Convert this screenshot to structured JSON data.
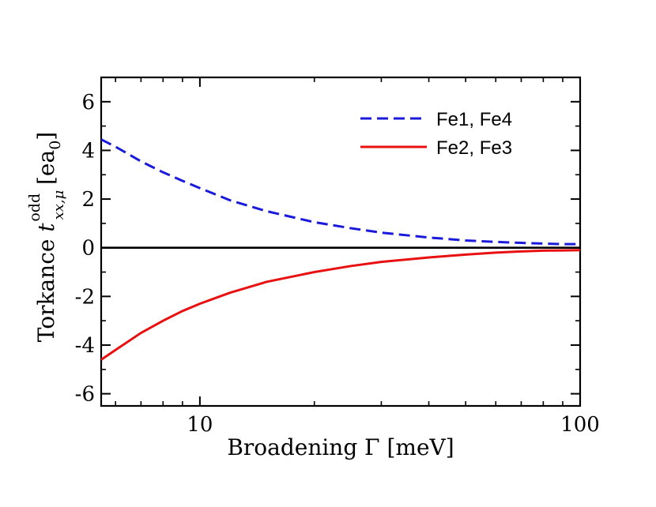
{
  "chart_data": {
    "type": "line",
    "title": "",
    "xlabel": "Broadening Γ [meV]",
    "ylabel": {
      "prefix": "Torkance ",
      "symbol": "t",
      "superscript": "odd",
      "subscript": "xx,μ",
      "unit_open": " [ea",
      "unit_sub": "0",
      "unit_close": "]"
    },
    "x_scale": "log",
    "xlim": [
      5.5,
      100
    ],
    "ylim": [
      -6.5,
      7
    ],
    "x_ticks": [
      10,
      100
    ],
    "x_tick_labels": [
      "10",
      "100"
    ],
    "y_ticks": [
      -6,
      -4,
      -2,
      0,
      2,
      4,
      6
    ],
    "y_tick_labels": [
      "-6",
      "-4",
      "-2",
      "0",
      "2",
      "4",
      "6"
    ],
    "zero_line": 0,
    "legend_position": "top-right",
    "series": [
      {
        "name": "Fe1, Fe4",
        "style": "dashed",
        "color": "#1a1adb",
        "x": [
          5.5,
          6,
          7,
          8,
          9,
          10,
          12,
          15,
          20,
          25,
          30,
          40,
          50,
          60,
          70,
          80,
          90,
          100
        ],
        "y": [
          4.45,
          4.15,
          3.55,
          3.1,
          2.75,
          2.45,
          1.95,
          1.5,
          1.05,
          0.8,
          0.62,
          0.42,
          0.3,
          0.24,
          0.2,
          0.17,
          0.15,
          0.15
        ]
      },
      {
        "name": "Fe2, Fe3",
        "style": "solid",
        "color": "#e81010",
        "x": [
          5.5,
          6,
          7,
          8,
          9,
          10,
          12,
          15,
          20,
          25,
          30,
          40,
          50,
          60,
          70,
          80,
          90,
          100
        ],
        "y": [
          -4.6,
          -4.2,
          -3.5,
          -3.0,
          -2.6,
          -2.3,
          -1.85,
          -1.4,
          -1.0,
          -0.75,
          -0.58,
          -0.4,
          -0.28,
          -0.2,
          -0.15,
          -0.12,
          -0.11,
          -0.1
        ]
      }
    ]
  }
}
